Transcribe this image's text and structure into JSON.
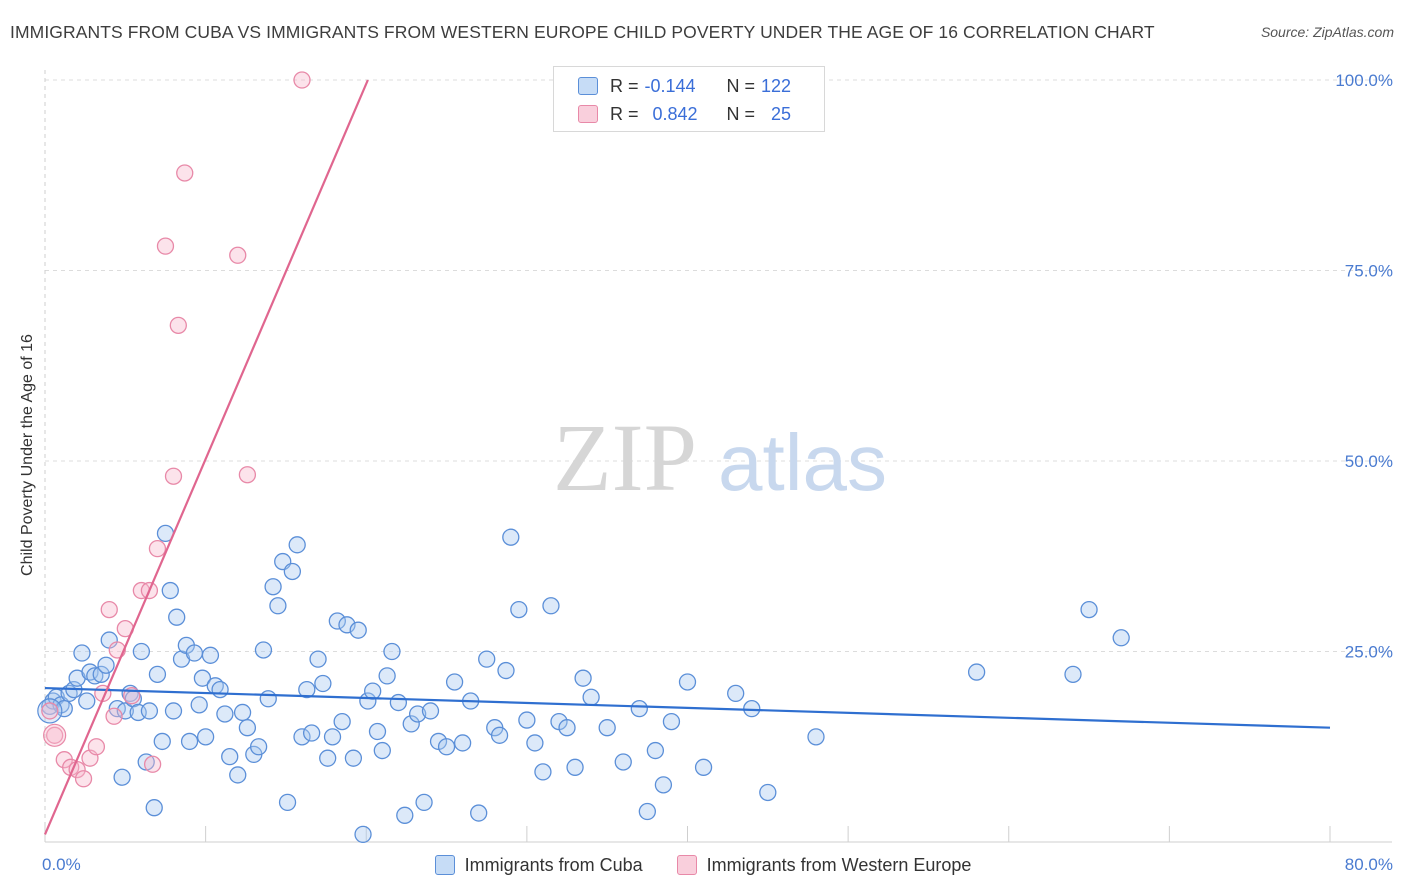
{
  "header": {
    "title": "IMMIGRANTS FROM CUBA VS IMMIGRANTS FROM WESTERN EUROPE CHILD POVERTY UNDER THE AGE OF 16 CORRELATION CHART",
    "source": "Source: ZipAtlas.com"
  },
  "watermark": {
    "zip": "ZIP",
    "atlas": "atlas"
  },
  "legend": {
    "cuba": {
      "r_label": "R =",
      "r_value": "-0.144",
      "n_label": "N =",
      "n_value": "122"
    },
    "weurope": {
      "r_label": "R =",
      "r_value": "0.842",
      "n_label": "N =",
      "n_value": "25"
    }
  },
  "bottom_legend": {
    "cuba": "Immigrants from Cuba",
    "weurope": "Immigrants from Western Europe"
  },
  "colors": {
    "cuba_fill": "#a8c8f0",
    "cuba_stroke": "#5b8fd8",
    "cuba_line": "#2f6fd0",
    "weurope_fill": "#f7b8cc",
    "weurope_stroke": "#e889a8",
    "weurope_line": "#e0668f",
    "tick_text": "#4a7bd0",
    "grid": "#dcdcdc"
  },
  "chart_data": {
    "type": "scatter",
    "title": "IMMIGRANTS FROM CUBA VS IMMIGRANTS FROM WESTERN EUROPE CHILD POVERTY UNDER THE AGE OF 16 CORRELATION CHART",
    "xlabel": "",
    "ylabel": "Child Poverty Under the Age of 16",
    "xlim": [
      0,
      80
    ],
    "ylim": [
      0,
      100
    ],
    "x_tick_labels": [
      "0.0%",
      "80.0%"
    ],
    "y_ticks": [
      25,
      50,
      75,
      100
    ],
    "y_tick_labels": [
      "25.0%",
      "50.0%",
      "75.0%",
      "100.0%"
    ],
    "grid": true,
    "series": [
      {
        "name": "Immigrants from Cuba",
        "r": -0.144,
        "n": 122,
        "trend": {
          "x0": 0,
          "y0": 20.2,
          "x1": 80,
          "y1": 15.0
        },
        "points": [
          [
            0.3,
            17.8
          ],
          [
            0.5,
            18.5
          ],
          [
            0.7,
            19.0
          ],
          [
            1.0,
            18.0
          ],
          [
            1.2,
            17.5
          ],
          [
            1.5,
            19.5
          ],
          [
            1.8,
            20.0
          ],
          [
            2.0,
            21.5
          ],
          [
            2.3,
            24.8
          ],
          [
            2.6,
            18.5
          ],
          [
            2.8,
            22.3
          ],
          [
            3.1,
            21.8
          ],
          [
            3.5,
            22.0
          ],
          [
            3.8,
            23.2
          ],
          [
            4.0,
            26.5
          ],
          [
            4.5,
            17.5
          ],
          [
            4.8,
            8.5
          ],
          [
            5.0,
            17.2
          ],
          [
            5.3,
            19.5
          ],
          [
            5.5,
            18.8
          ],
          [
            5.8,
            17.0
          ],
          [
            6.0,
            25.0
          ],
          [
            6.3,
            10.5
          ],
          [
            6.5,
            17.2
          ],
          [
            6.8,
            4.5
          ],
          [
            7.0,
            22.0
          ],
          [
            7.3,
            13.2
          ],
          [
            7.5,
            40.5
          ],
          [
            7.8,
            33.0
          ],
          [
            8.0,
            17.2
          ],
          [
            8.2,
            29.5
          ],
          [
            8.5,
            24.0
          ],
          [
            8.8,
            25.8
          ],
          [
            9.0,
            13.2
          ],
          [
            9.3,
            24.8
          ],
          [
            9.6,
            18.0
          ],
          [
            9.8,
            21.5
          ],
          [
            10.0,
            13.8
          ],
          [
            10.3,
            24.5
          ],
          [
            10.6,
            20.5
          ],
          [
            10.9,
            20.0
          ],
          [
            11.2,
            16.8
          ],
          [
            11.5,
            11.2
          ],
          [
            12.0,
            8.8
          ],
          [
            12.3,
            17.0
          ],
          [
            12.6,
            15.0
          ],
          [
            13.0,
            11.5
          ],
          [
            13.3,
            12.5
          ],
          [
            13.6,
            25.2
          ],
          [
            13.9,
            18.8
          ],
          [
            14.2,
            33.5
          ],
          [
            14.5,
            31.0
          ],
          [
            14.8,
            36.8
          ],
          [
            15.1,
            5.2
          ],
          [
            15.4,
            35.5
          ],
          [
            15.7,
            39.0
          ],
          [
            16.0,
            13.8
          ],
          [
            16.3,
            20.0
          ],
          [
            16.6,
            14.3
          ],
          [
            17.0,
            24.0
          ],
          [
            17.3,
            20.8
          ],
          [
            17.6,
            11.0
          ],
          [
            17.9,
            13.8
          ],
          [
            18.2,
            29.0
          ],
          [
            18.5,
            15.8
          ],
          [
            18.8,
            28.5
          ],
          [
            19.2,
            11.0
          ],
          [
            19.5,
            27.8
          ],
          [
            19.8,
            1.0
          ],
          [
            20.1,
            18.5
          ],
          [
            20.4,
            19.8
          ],
          [
            20.7,
            14.5
          ],
          [
            21.0,
            12.0
          ],
          [
            21.3,
            21.8
          ],
          [
            21.6,
            25.0
          ],
          [
            22.0,
            18.3
          ],
          [
            22.4,
            3.5
          ],
          [
            22.8,
            15.5
          ],
          [
            23.2,
            16.8
          ],
          [
            23.6,
            5.2
          ],
          [
            24.0,
            17.2
          ],
          [
            24.5,
            13.2
          ],
          [
            25.0,
            12.5
          ],
          [
            25.5,
            21.0
          ],
          [
            26.0,
            13.0
          ],
          [
            26.5,
            18.5
          ],
          [
            27.0,
            3.8
          ],
          [
            27.5,
            24.0
          ],
          [
            28.0,
            15.0
          ],
          [
            28.3,
            14.0
          ],
          [
            28.7,
            22.5
          ],
          [
            29.0,
            40.0
          ],
          [
            29.5,
            30.5
          ],
          [
            30.0,
            16.0
          ],
          [
            30.5,
            13.0
          ],
          [
            31.0,
            9.2
          ],
          [
            31.5,
            31.0
          ],
          [
            32.0,
            15.8
          ],
          [
            32.5,
            15.0
          ],
          [
            33.0,
            9.8
          ],
          [
            33.5,
            21.5
          ],
          [
            34.0,
            19.0
          ],
          [
            35.0,
            15.0
          ],
          [
            36.0,
            10.5
          ],
          [
            37.0,
            17.5
          ],
          [
            37.5,
            4.0
          ],
          [
            38.0,
            12.0
          ],
          [
            38.5,
            7.5
          ],
          [
            39.0,
            15.8
          ],
          [
            40.0,
            21.0
          ],
          [
            41.0,
            9.8
          ],
          [
            43.0,
            19.5
          ],
          [
            44.0,
            17.5
          ],
          [
            45.0,
            6.5
          ],
          [
            48.0,
            13.8
          ],
          [
            58.0,
            22.3
          ],
          [
            64.0,
            22.0
          ],
          [
            65.0,
            30.5
          ],
          [
            67.0,
            26.8
          ]
        ]
      },
      {
        "name": "Immigrants from Western Europe",
        "r": 0.842,
        "n": 25,
        "trend": {
          "x0": 0,
          "y0": 1.0,
          "x1": 20.1,
          "y1": 100.0
        },
        "points": [
          [
            0.3,
            17.2
          ],
          [
            0.6,
            14.0
          ],
          [
            1.2,
            10.8
          ],
          [
            1.6,
            9.8
          ],
          [
            2.0,
            9.5
          ],
          [
            2.4,
            8.3
          ],
          [
            2.8,
            11.0
          ],
          [
            3.2,
            12.5
          ],
          [
            3.6,
            19.5
          ],
          [
            4.0,
            30.5
          ],
          [
            4.5,
            25.2
          ],
          [
            5.0,
            28.0
          ],
          [
            5.4,
            19.2
          ],
          [
            6.0,
            33.0
          ],
          [
            6.5,
            33.0
          ],
          [
            7.0,
            38.5
          ],
          [
            7.5,
            78.2
          ],
          [
            8.0,
            48.0
          ],
          [
            8.3,
            67.8
          ],
          [
            8.7,
            87.8
          ],
          [
            12.0,
            77.0
          ],
          [
            12.6,
            48.2
          ],
          [
            16.0,
            100.0
          ],
          [
            4.3,
            16.5
          ],
          [
            6.7,
            10.2
          ]
        ]
      }
    ]
  }
}
